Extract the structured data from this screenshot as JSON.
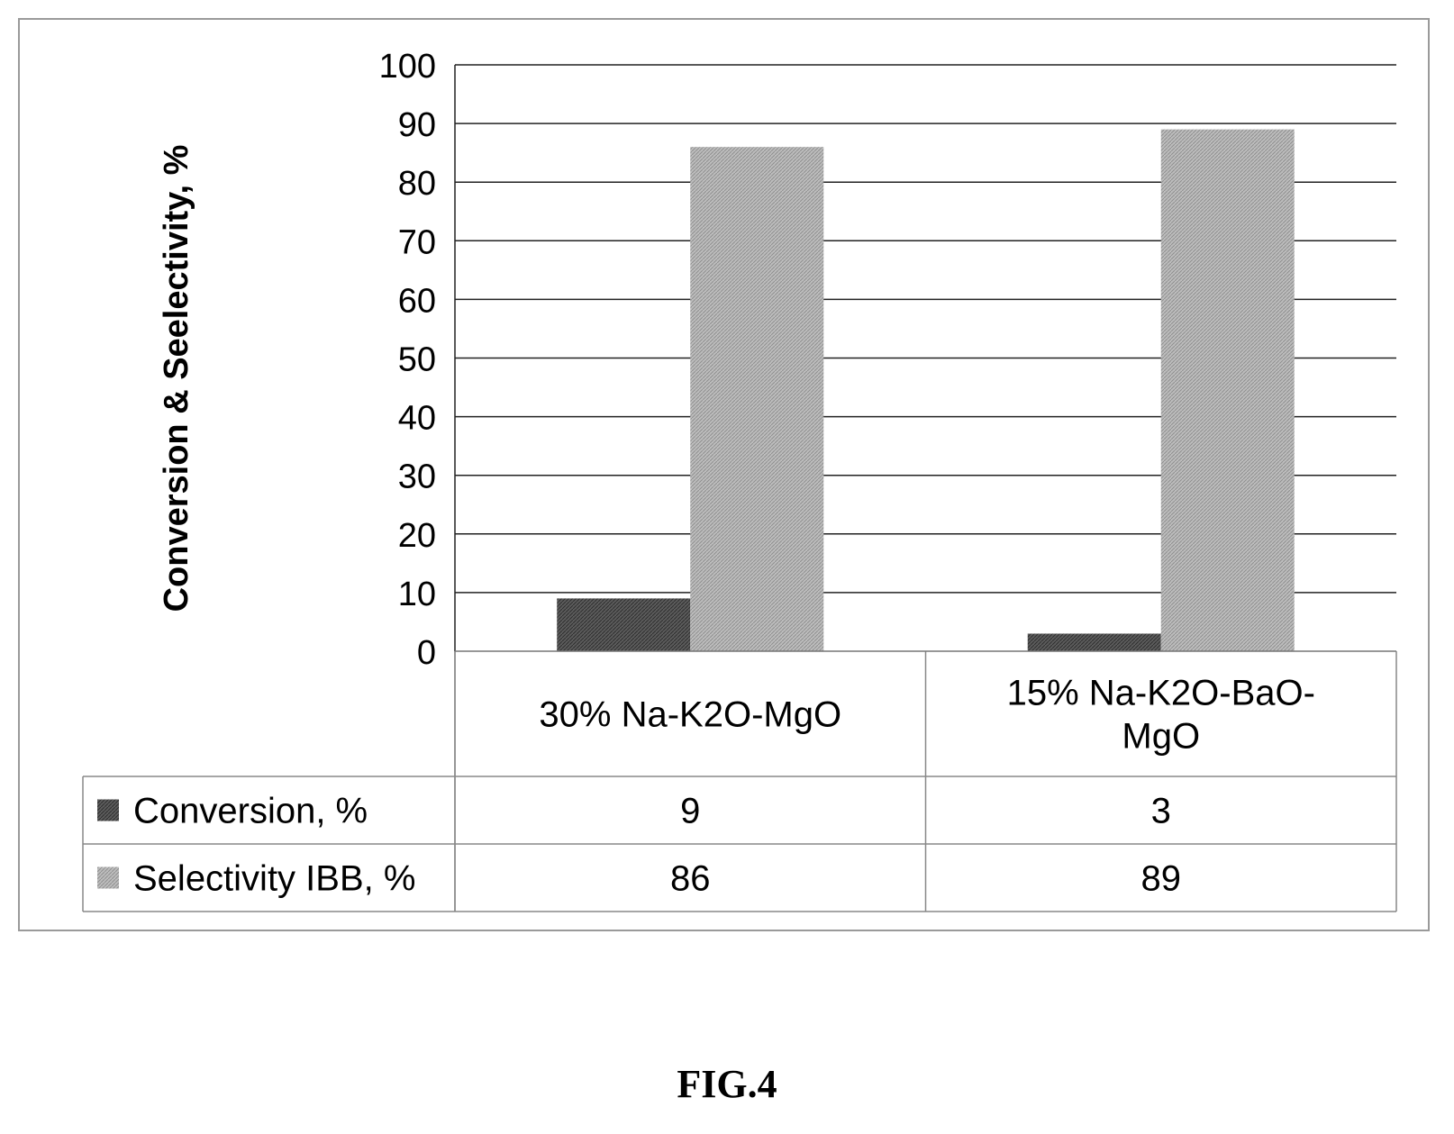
{
  "figure_label": "FIG.4",
  "chart_data": {
    "type": "bar",
    "ylabel": "Conversion & Seelectivity, %",
    "ylim": [
      0,
      100
    ],
    "yticks": [
      0,
      10,
      20,
      30,
      40,
      50,
      60,
      70,
      80,
      90,
      100
    ],
    "grid": true,
    "legend": "data-table",
    "categories": [
      [
        "30% Na-K2O-MgO"
      ],
      [
        "15% Na-K2O-BaO-",
        "MgO"
      ]
    ],
    "series": [
      {
        "name": "Conversion, %",
        "values": [
          9,
          3
        ],
        "color": "#5c5c5c"
      },
      {
        "name": "Selectivity IBB, %",
        "values": [
          86,
          89
        ],
        "color": "#b8b8b8"
      }
    ]
  }
}
